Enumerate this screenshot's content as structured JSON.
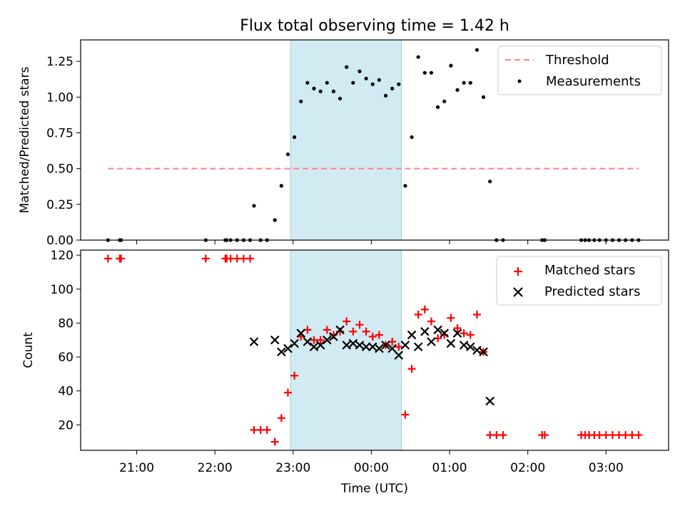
{
  "chart_data": [
    {
      "type": "scatter",
      "title": "Flux total observing time = 1.42 h",
      "xlabel": "",
      "ylabel": "Matched/Predicted stars",
      "xlim": [
        "20:17",
        "03:48"
      ],
      "ylim": [
        0,
        1.4
      ],
      "yticks": [
        "0.00",
        "0.25",
        "0.50",
        "0.75",
        "1.00",
        "1.25"
      ],
      "shaded_interval": [
        "22:58",
        "00:23"
      ],
      "threshold": {
        "name": "Threshold",
        "value": 0.5,
        "x_range": [
          "20:38",
          "03:25"
        ],
        "color": "#ff8080"
      },
      "series": [
        {
          "name": "Measurements",
          "color": "#000000",
          "points": [
            [
              "20:38",
              0
            ],
            [
              "20:47",
              0
            ],
            [
              "20:48",
              0
            ],
            [
              "21:53",
              0
            ],
            [
              "22:08",
              0
            ],
            [
              "22:09",
              0
            ],
            [
              "22:12",
              0
            ],
            [
              "22:17",
              0
            ],
            [
              "22:22",
              0
            ],
            [
              "22:27",
              0
            ],
            [
              "22:30",
              0.24
            ],
            [
              "22:35",
              0
            ],
            [
              "22:40",
              0
            ],
            [
              "22:46",
              0.14
            ],
            [
              "22:51",
              0.38
            ],
            [
              "22:56",
              0.6
            ],
            [
              "23:01",
              0.72
            ],
            [
              "23:06",
              0.97
            ],
            [
              "23:11",
              1.1
            ],
            [
              "23:16",
              1.06
            ],
            [
              "23:21",
              1.04
            ],
            [
              "23:26",
              1.1
            ],
            [
              "23:31",
              1.04
            ],
            [
              "23:36",
              0.99
            ],
            [
              "23:41",
              1.21
            ],
            [
              "23:46",
              1.1
            ],
            [
              "23:51",
              1.18
            ],
            [
              "23:56",
              1.13
            ],
            [
              "00:01",
              1.09
            ],
            [
              "00:06",
              1.12
            ],
            [
              "00:11",
              1.01
            ],
            [
              "00:16",
              1.06
            ],
            [
              "00:21",
              1.09
            ],
            [
              "00:26",
              0.38
            ],
            [
              "00:31",
              0.72
            ],
            [
              "00:36",
              1.28
            ],
            [
              "00:41",
              1.17
            ],
            [
              "00:46",
              1.17
            ],
            [
              "00:51",
              0.93
            ],
            [
              "00:56",
              0.97
            ],
            [
              "01:01",
              1.22
            ],
            [
              "01:06",
              1.05
            ],
            [
              "01:11",
              1.1
            ],
            [
              "01:16",
              1.1
            ],
            [
              "01:21",
              1.33
            ],
            [
              "01:26",
              1.0
            ],
            [
              "01:31",
              0.41
            ],
            [
              "01:36",
              0
            ],
            [
              "01:41",
              0
            ],
            [
              "02:11",
              0
            ],
            [
              "02:13",
              0
            ],
            [
              "02:41",
              0
            ],
            [
              "02:44",
              0
            ],
            [
              "02:47",
              0
            ],
            [
              "02:51",
              0
            ],
            [
              "02:55",
              0
            ],
            [
              "03:00",
              0
            ],
            [
              "03:05",
              0
            ],
            [
              "03:10",
              0
            ],
            [
              "03:15",
              0
            ],
            [
              "03:20",
              0
            ],
            [
              "03:25",
              0
            ]
          ]
        }
      ],
      "legend": {
        "placement": "top-right",
        "entries": [
          "Threshold",
          "Measurements"
        ]
      }
    },
    {
      "type": "scatter",
      "title": "",
      "xlabel": "Time (UTC)",
      "ylabel": "Count",
      "xlim": [
        "20:17",
        "03:48"
      ],
      "ylim": [
        5,
        123
      ],
      "yticks": [
        "20",
        "40",
        "60",
        "80",
        "100",
        "120"
      ],
      "xticks": [
        "21:00",
        "22:00",
        "23:00",
        "00:00",
        "01:00",
        "02:00",
        "03:00"
      ],
      "shaded_interval": [
        "22:58",
        "00:23"
      ],
      "series": [
        {
          "name": "Matched stars",
          "marker": "+",
          "color": "#ff0000",
          "points": [
            [
              "20:38",
              118
            ],
            [
              "20:47",
              118
            ],
            [
              "20:48",
              118
            ],
            [
              "21:53",
              118
            ],
            [
              "22:08",
              118
            ],
            [
              "22:09",
              118
            ],
            [
              "22:12",
              118
            ],
            [
              "22:17",
              118
            ],
            [
              "22:22",
              118
            ],
            [
              "22:27",
              118
            ],
            [
              "22:30",
              17
            ],
            [
              "22:35",
              17
            ],
            [
              "22:40",
              17
            ],
            [
              "22:46",
              10
            ],
            [
              "22:51",
              24
            ],
            [
              "22:56",
              39
            ],
            [
              "23:01",
              49
            ],
            [
              "23:06",
              72
            ],
            [
              "23:11",
              76
            ],
            [
              "23:16",
              70
            ],
            [
              "23:21",
              70
            ],
            [
              "23:26",
              76
            ],
            [
              "23:31",
              73
            ],
            [
              "23:36",
              75
            ],
            [
              "23:41",
              81
            ],
            [
              "23:46",
              75
            ],
            [
              "23:51",
              79
            ],
            [
              "23:56",
              75
            ],
            [
              "00:01",
              72
            ],
            [
              "00:06",
              73
            ],
            [
              "00:11",
              67
            ],
            [
              "00:16",
              69
            ],
            [
              "00:21",
              66
            ],
            [
              "00:26",
              26
            ],
            [
              "00:31",
              53
            ],
            [
              "00:36",
              85
            ],
            [
              "00:41",
              88
            ],
            [
              "00:46",
              81
            ],
            [
              "00:51",
              71
            ],
            [
              "00:56",
              73
            ],
            [
              "01:01",
              83
            ],
            [
              "01:06",
              77
            ],
            [
              "01:11",
              74
            ],
            [
              "01:16",
              73
            ],
            [
              "01:21",
              85
            ],
            [
              "01:26",
              63
            ],
            [
              "01:31",
              14
            ],
            [
              "01:36",
              14
            ],
            [
              "01:41",
              14
            ],
            [
              "02:11",
              14
            ],
            [
              "02:13",
              14
            ],
            [
              "02:41",
              14
            ],
            [
              "02:44",
              14
            ],
            [
              "02:47",
              14
            ],
            [
              "02:51",
              14
            ],
            [
              "02:55",
              14
            ],
            [
              "03:00",
              14
            ],
            [
              "03:05",
              14
            ],
            [
              "03:10",
              14
            ],
            [
              "03:15",
              14
            ],
            [
              "03:20",
              14
            ],
            [
              "03:25",
              14
            ]
          ]
        },
        {
          "name": "Predicted stars",
          "marker": "x",
          "color": "#000000",
          "points": [
            [
              "22:30",
              69
            ],
            [
              "22:46",
              70
            ],
            [
              "22:51",
              63
            ],
            [
              "22:56",
              65
            ],
            [
              "23:01",
              68
            ],
            [
              "23:06",
              74
            ],
            [
              "23:11",
              69
            ],
            [
              "23:16",
              66
            ],
            [
              "23:21",
              67
            ],
            [
              "23:26",
              70
            ],
            [
              "23:31",
              72
            ],
            [
              "23:36",
              76
            ],
            [
              "23:41",
              67
            ],
            [
              "23:46",
              68
            ],
            [
              "23:51",
              67
            ],
            [
              "23:56",
              66
            ],
            [
              "00:01",
              66
            ],
            [
              "00:06",
              65
            ],
            [
              "00:11",
              67
            ],
            [
              "00:16",
              65
            ],
            [
              "00:21",
              61
            ],
            [
              "00:26",
              67
            ],
            [
              "00:31",
              73
            ],
            [
              "00:36",
              66
            ],
            [
              "00:41",
              75
            ],
            [
              "00:46",
              69
            ],
            [
              "00:51",
              76
            ],
            [
              "00:56",
              74
            ],
            [
              "01:01",
              68
            ],
            [
              "01:06",
              74
            ],
            [
              "01:11",
              67
            ],
            [
              "01:16",
              66
            ],
            [
              "01:21",
              64
            ],
            [
              "01:26",
              63
            ],
            [
              "01:31",
              34
            ]
          ]
        }
      ],
      "legend": {
        "placement": "top-right",
        "entries": [
          "Matched stars",
          "Predicted stars"
        ]
      }
    }
  ]
}
